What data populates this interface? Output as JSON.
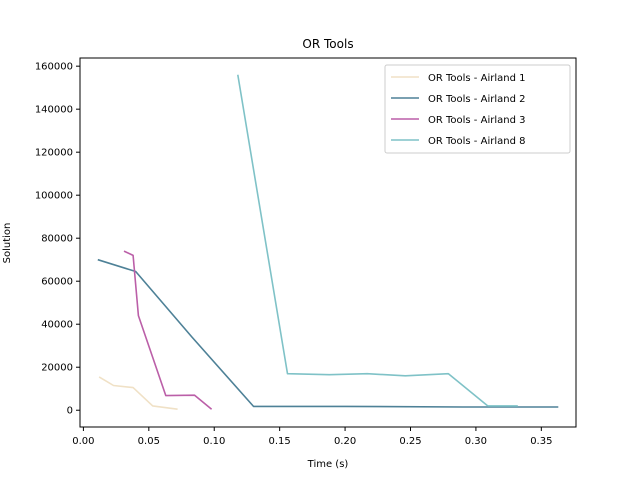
{
  "chart_data": {
    "type": "line",
    "title": "OR Tools",
    "xlabel": "Time (s)",
    "ylabel": "Solution",
    "xlim": [
      -0.0026,
      0.3765
    ],
    "ylim": [
      -7800,
      163800
    ],
    "xticks": [
      0.0,
      0.05,
      0.1,
      0.15,
      0.2,
      0.25,
      0.3,
      0.35
    ],
    "xtick_labels": [
      "0.00",
      "0.05",
      "0.10",
      "0.15",
      "0.20",
      "0.25",
      "0.30",
      "0.35"
    ],
    "yticks": [
      0,
      20000,
      40000,
      60000,
      80000,
      100000,
      120000,
      140000,
      160000
    ],
    "ytick_labels": [
      "0",
      "20000",
      "40000",
      "60000",
      "80000",
      "100000",
      "120000",
      "140000",
      "160000"
    ],
    "grid": false,
    "legend_position": "top-right",
    "series": [
      {
        "name": "OR Tools - Airland 1",
        "color": "#f0e1c6",
        "x": [
          0.012,
          0.023,
          0.038,
          0.053,
          0.072
        ],
        "y": [
          15500,
          11500,
          10500,
          2000,
          500
        ]
      },
      {
        "name": "OR Tools - Airland 2",
        "color": "#4e8197",
        "x": [
          0.011,
          0.04,
          0.083,
          0.13,
          0.2,
          0.29,
          0.363
        ],
        "y": [
          70000,
          64500,
          34000,
          1800,
          1800,
          1500,
          1500
        ]
      },
      {
        "name": "OR Tools - Airland 3",
        "color": "#bb5fa8",
        "x": [
          0.031,
          0.038,
          0.042,
          0.063,
          0.085,
          0.098
        ],
        "y": [
          74000,
          72000,
          44000,
          6800,
          7000,
          500
        ]
      },
      {
        "name": "OR Tools - Airland 8",
        "color": "#7fc2c7",
        "x": [
          0.118,
          0.156,
          0.188,
          0.217,
          0.246,
          0.279,
          0.309,
          0.332
        ],
        "y": [
          156000,
          17000,
          16500,
          17000,
          16000,
          17000,
          2000,
          2000
        ]
      }
    ]
  }
}
